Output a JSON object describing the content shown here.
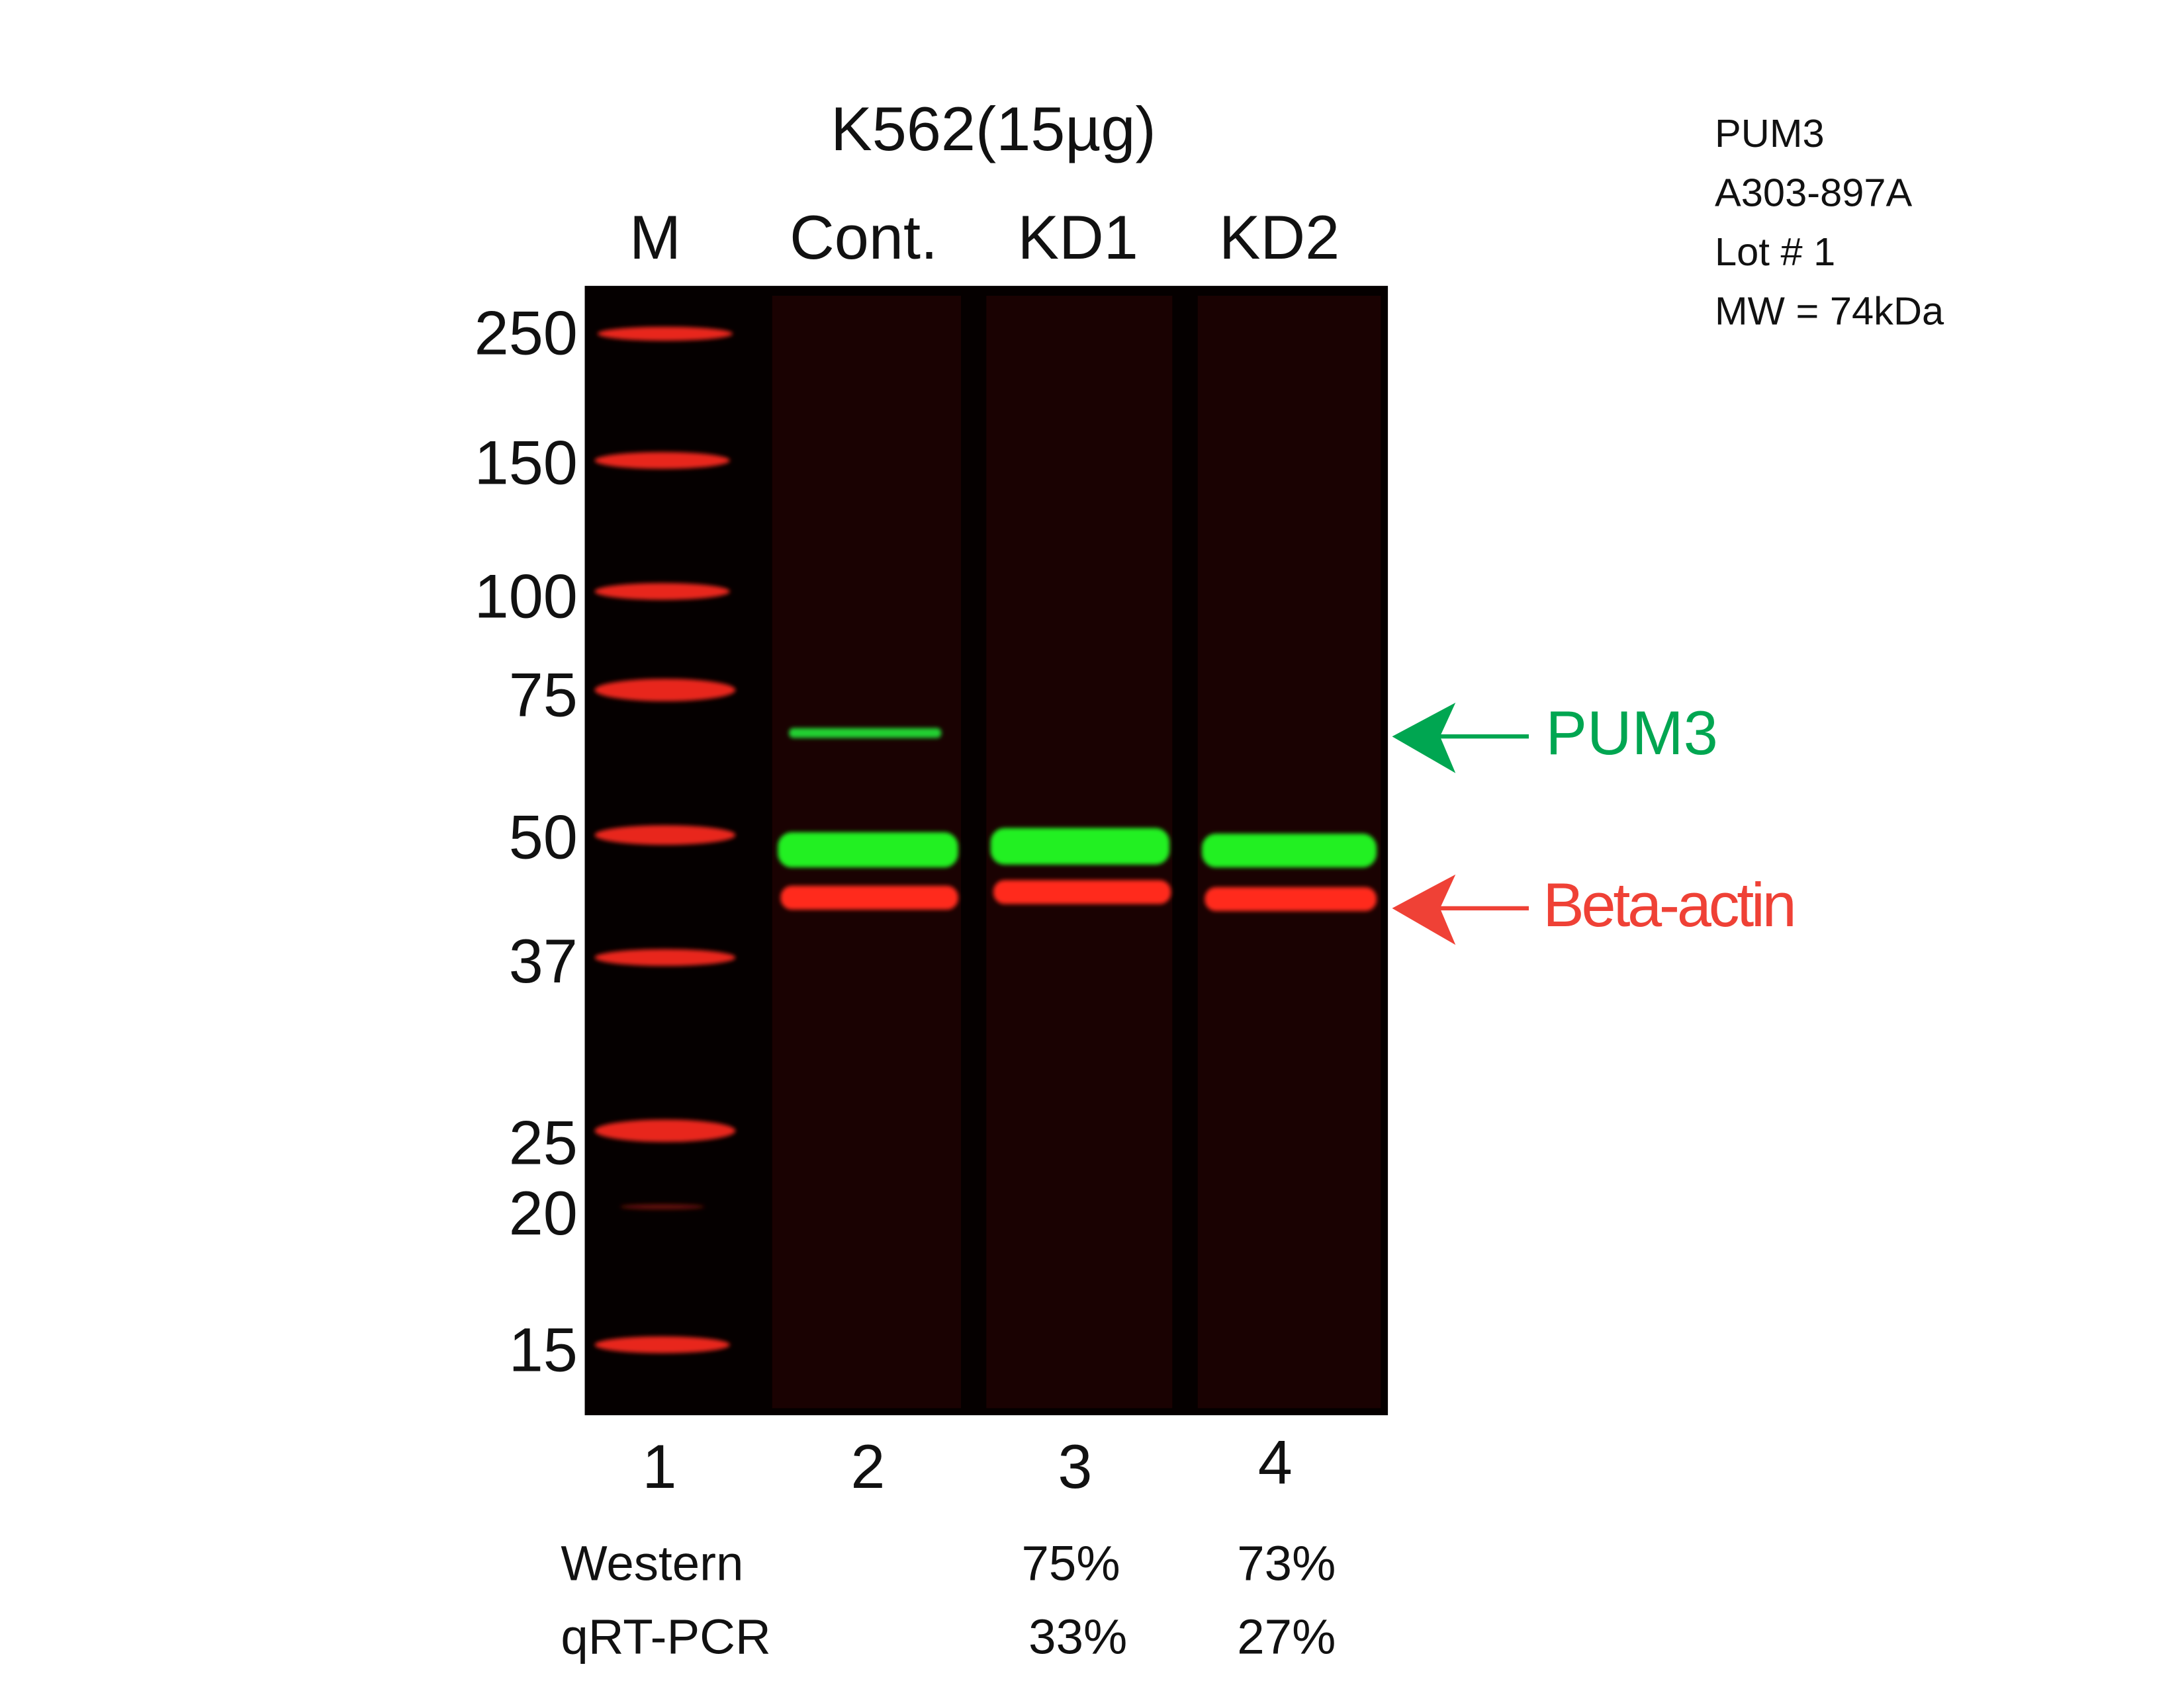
{
  "header": {
    "title": "K562(15µg)"
  },
  "lanes": [
    {
      "label": "M",
      "number": "1"
    },
    {
      "label": "Cont.",
      "number": "2"
    },
    {
      "label": "KD1",
      "number": "3"
    },
    {
      "label": "KD2",
      "number": "4"
    }
  ],
  "markers": [
    "250",
    "150",
    "100",
    "75",
    "50",
    "37",
    "25",
    "20",
    "15"
  ],
  "info": [
    "PUM3",
    "A303-897A",
    "Lot # 1",
    "MW = 74kDa"
  ],
  "annotations": [
    {
      "label": "PUM3"
    },
    {
      "label": "Beta-actin"
    }
  ],
  "quantification": {
    "rows": [
      [
        "Western",
        "75%",
        "73%"
      ],
      [
        "qRT-PCR",
        "33%",
        "27%"
      ]
    ]
  }
}
